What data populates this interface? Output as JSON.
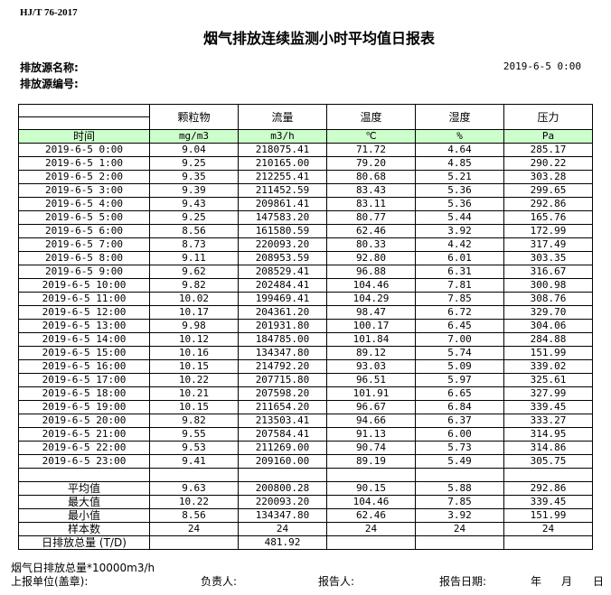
{
  "standard": "HJ/T  76-2017",
  "title": "烟气排放连续监测小时平均值日报表",
  "source_name_label": "排放源名称:",
  "source_id_label": "排放源编号:",
  "report_datetime": "2019-6-5 0:00",
  "columns": [
    "颗粒物",
    "流量",
    "温度",
    "湿度",
    "压力"
  ],
  "time_label": "时间",
  "units": [
    "mg/m3",
    "m3/h",
    "℃",
    "%",
    "Pa"
  ],
  "rows": [
    [
      "2019-6-5 0:00",
      "9.04",
      "218075.41",
      "71.72",
      "4.64",
      "285.17"
    ],
    [
      "2019-6-5 1:00",
      "9.25",
      "210165.00",
      "79.20",
      "4.85",
      "290.22"
    ],
    [
      "2019-6-5 2:00",
      "9.35",
      "212255.41",
      "80.68",
      "5.21",
      "303.28"
    ],
    [
      "2019-6-5 3:00",
      "9.39",
      "211452.59",
      "83.43",
      "5.36",
      "299.65"
    ],
    [
      "2019-6-5 4:00",
      "9.43",
      "209861.41",
      "83.11",
      "5.36",
      "292.86"
    ],
    [
      "2019-6-5 5:00",
      "9.25",
      "147583.20",
      "80.77",
      "5.44",
      "165.76"
    ],
    [
      "2019-6-5 6:00",
      "8.56",
      "161580.59",
      "62.46",
      "3.92",
      "172.99"
    ],
    [
      "2019-6-5 7:00",
      "8.73",
      "220093.20",
      "80.33",
      "4.42",
      "317.49"
    ],
    [
      "2019-6-5 8:00",
      "9.11",
      "208953.59",
      "92.80",
      "6.01",
      "303.35"
    ],
    [
      "2019-6-5 9:00",
      "9.62",
      "208529.41",
      "96.88",
      "6.31",
      "316.67"
    ],
    [
      "2019-6-5 10:00",
      "9.82",
      "202484.41",
      "104.46",
      "7.81",
      "300.98"
    ],
    [
      "2019-6-5 11:00",
      "10.02",
      "199469.41",
      "104.29",
      "7.85",
      "308.76"
    ],
    [
      "2019-6-5 12:00",
      "10.17",
      "204361.20",
      "98.47",
      "6.72",
      "329.70"
    ],
    [
      "2019-6-5 13:00",
      "9.98",
      "201931.80",
      "100.17",
      "6.45",
      "304.06"
    ],
    [
      "2019-6-5 14:00",
      "10.12",
      "184785.00",
      "101.84",
      "7.00",
      "284.88"
    ],
    [
      "2019-6-5 15:00",
      "10.16",
      "134347.80",
      "89.12",
      "5.74",
      "151.99"
    ],
    [
      "2019-6-5 16:00",
      "10.15",
      "214792.20",
      "93.03",
      "5.09",
      "339.02"
    ],
    [
      "2019-6-5 17:00",
      "10.22",
      "207715.80",
      "96.51",
      "5.97",
      "325.61"
    ],
    [
      "2019-6-5 18:00",
      "10.21",
      "207598.20",
      "101.91",
      "6.65",
      "327.99"
    ],
    [
      "2019-6-5 19:00",
      "10.15",
      "211654.20",
      "96.67",
      "6.84",
      "339.45"
    ],
    [
      "2019-6-5 20:00",
      "9.82",
      "213503.41",
      "94.66",
      "6.37",
      "333.27"
    ],
    [
      "2019-6-5 21:00",
      "9.55",
      "207584.41",
      "91.13",
      "6.00",
      "314.95"
    ],
    [
      "2019-6-5 22:00",
      "9.53",
      "211269.00",
      "90.74",
      "5.73",
      "314.86"
    ],
    [
      "2019-6-5 23:00",
      "9.41",
      "209160.00",
      "89.19",
      "5.49",
      "305.75"
    ]
  ],
  "summary": [
    [
      "平均值",
      "9.63",
      "200800.28",
      "90.15",
      "5.88",
      "292.86"
    ],
    [
      "最大值",
      "10.22",
      "220093.20",
      "104.46",
      "7.85",
      "339.45"
    ],
    [
      "最小值",
      "8.56",
      "134347.80",
      "62.46",
      "3.92",
      "151.99"
    ],
    [
      "样本数",
      "24",
      "24",
      "24",
      "24",
      "24"
    ],
    [
      "日排放总量 (T/D)",
      "",
      "481.92",
      "",
      "",
      ""
    ]
  ],
  "footer": {
    "note": "烟气日排放总量*10000m3/h",
    "unit_label": "上报单位(盖章):",
    "responsible_label": "负责人:",
    "reporter_label": "报告人:",
    "report_date_label": "报告日期:",
    "year": "年",
    "month": "月",
    "day": "日"
  },
  "colors": {
    "unit_row_bg": "#ccffcc"
  }
}
